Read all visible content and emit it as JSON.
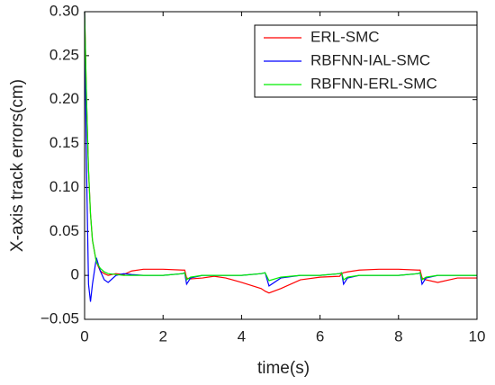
{
  "chart_data": {
    "type": "line",
    "xlabel": "time(s)",
    "ylabel": "X-axis track errors(cm)",
    "x": [
      0,
      0.05,
      0.1,
      0.15,
      0.2,
      0.3,
      0.4,
      0.5,
      0.6,
      0.8,
      1,
      1.2,
      1.5,
      2,
      2.5,
      2.55,
      2.6,
      2.7,
      3,
      3.3,
      3.6,
      4,
      4.5,
      4.6,
      4.7,
      5,
      5.5,
      6,
      6.5,
      6.55,
      6.6,
      6.7,
      7,
      7.5,
      8,
      8.5,
      8.55,
      8.6,
      8.7,
      9,
      9.5,
      10
    ],
    "series": [
      {
        "name": "ERL-SMC",
        "color": "#ff0000",
        "values": [
          0.3,
          0.2,
          0.12,
          0.07,
          0.04,
          0.015,
          0.005,
          0.002,
          0,
          0.002,
          0.001,
          0.005,
          0.007,
          0.007,
          0.006,
          0.006,
          -0.003,
          -0.004,
          -0.003,
          -0.001,
          -0.003,
          -0.008,
          -0.015,
          -0.018,
          -0.02,
          -0.015,
          -0.005,
          -0.002,
          -0.001,
          0.002,
          0.003,
          0.004,
          0.006,
          0.007,
          0.007,
          0.006,
          0.006,
          -0.003,
          -0.005,
          -0.008,
          -0.003,
          -0.003
        ]
      },
      {
        "name": "RBFNN-IAL-SMC",
        "color": "#0000ff",
        "values": [
          0.3,
          0.12,
          -0.01,
          -0.03,
          -0.01,
          0.02,
          0.005,
          -0.005,
          -0.008,
          0,
          0.002,
          0.001,
          0,
          0,
          0.002,
          0.003,
          -0.01,
          -0.003,
          0,
          0,
          0,
          0,
          0.002,
          0.003,
          -0.012,
          -0.003,
          0,
          0,
          0.002,
          0.003,
          -0.01,
          -0.003,
          0,
          0,
          0,
          0.002,
          0.003,
          -0.01,
          -0.003,
          0,
          0,
          0
        ]
      },
      {
        "name": "RBFNN-ERL-SMC",
        "color": "#00ee00",
        "values": [
          0.3,
          0.2,
          0.12,
          0.07,
          0.04,
          0.015,
          0.008,
          0.004,
          0.002,
          0.001,
          0,
          0,
          0,
          0,
          0.002,
          0.003,
          -0.005,
          -0.002,
          0,
          0,
          0,
          0,
          0.002,
          0.003,
          -0.006,
          -0.002,
          0,
          0,
          0.002,
          0.003,
          -0.005,
          -0.002,
          0,
          0,
          0,
          0.002,
          0.003,
          -0.005,
          -0.002,
          0,
          0,
          0
        ]
      }
    ],
    "xlim": [
      0,
      10
    ],
    "xticks": [
      0,
      2,
      4,
      6,
      8,
      10
    ],
    "ylim": [
      -0.05,
      0.3
    ],
    "yticks": [
      {
        "value": -0.05,
        "label": "−0.05"
      },
      0,
      0.05,
      {
        "value": 0.1,
        "label": "0.10"
      },
      0.15,
      {
        "value": 0.2,
        "label": "0.20"
      },
      0.25,
      {
        "value": 0.3,
        "label": "0.30"
      }
    ],
    "grid": false,
    "legend": "upper right"
  }
}
